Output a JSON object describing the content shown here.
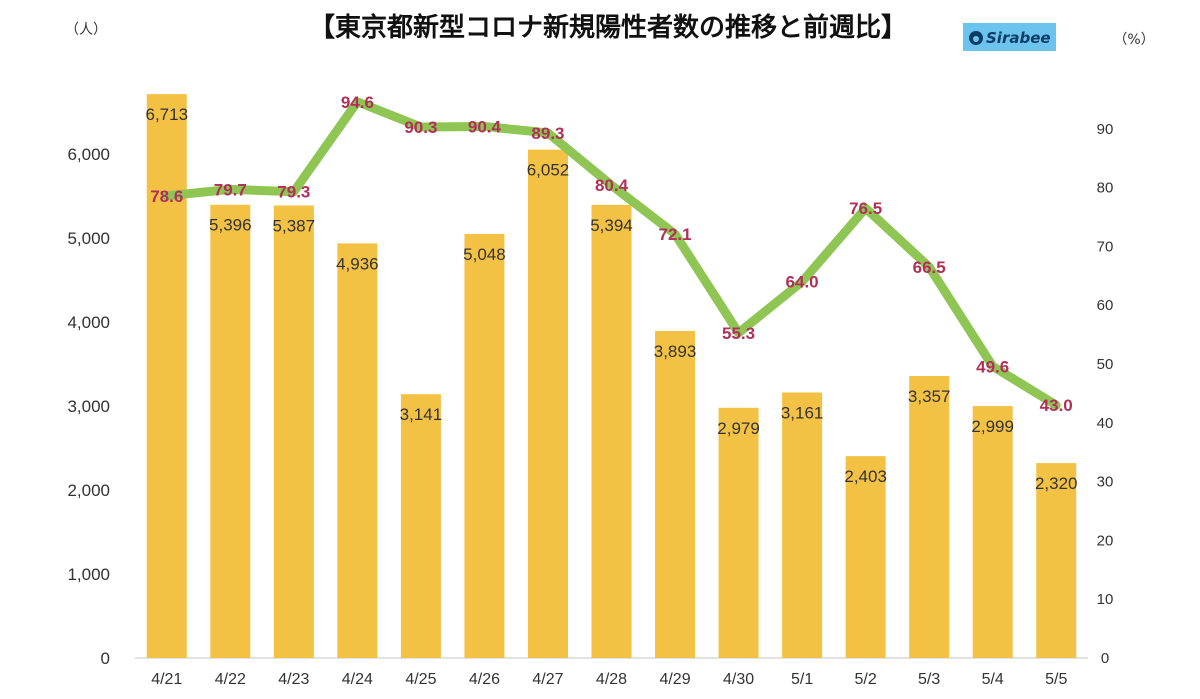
{
  "chart_data": {
    "type": "bar",
    "title": "【東京都新型コロナ新規陽性者数の推移と前週比】",
    "left_unit": "（人）",
    "right_unit": "（%）",
    "logo": "Sirabee",
    "categories": [
      "4/21",
      "4/22",
      "4/23",
      "4/24",
      "4/25",
      "4/26",
      "4/27",
      "4/28",
      "4/29",
      "4/30",
      "5/1",
      "5/2",
      "5/3",
      "5/4",
      "5/5"
    ],
    "series": [
      {
        "type": "bar",
        "axis": "left",
        "color": "#f3c245",
        "values": [
          6713,
          5396,
          5387,
          4936,
          3141,
          5048,
          6052,
          5394,
          3893,
          2979,
          3161,
          2403,
          3357,
          2999,
          2320
        ],
        "labels": [
          "6,713",
          "5,396",
          "5,387",
          "4,936",
          "3,141",
          "5,048",
          "6,052",
          "5,394",
          "3,893",
          "2,979",
          "3,161",
          "2,403",
          "3,357",
          "2,999",
          "2,320"
        ]
      },
      {
        "type": "line",
        "axis": "right",
        "color": "#8fc653",
        "label_color": "#b0305a",
        "values": [
          78.6,
          79.7,
          79.3,
          94.6,
          90.3,
          90.4,
          89.3,
          80.4,
          72.1,
          55.3,
          64.0,
          76.5,
          66.5,
          49.6,
          43.0
        ],
        "labels": [
          "78.6",
          "79.7",
          "79.3",
          "94.6",
          "90.3",
          "90.4",
          "89.3",
          "80.4",
          "72.1",
          "55.3",
          "64.0",
          "76.5",
          "66.5",
          "49.6",
          "43.0"
        ]
      }
    ],
    "y_left": {
      "min": 0,
      "max": 7000,
      "ticks": [
        0,
        1000,
        2000,
        3000,
        4000,
        5000,
        6000
      ],
      "tick_labels": [
        "0",
        "1,000",
        "2,000",
        "3,000",
        "4,000",
        "5,000",
        "6,000"
      ]
    },
    "y_right": {
      "min": 0,
      "max": 100,
      "ticks": [
        0,
        10,
        20,
        30,
        40,
        50,
        60,
        70,
        80,
        90
      ],
      "tick_labels": [
        "0",
        "10",
        "20",
        "30",
        "40",
        "50",
        "60",
        "70",
        "80",
        "90"
      ]
    },
    "grid": false,
    "legend": "none"
  }
}
